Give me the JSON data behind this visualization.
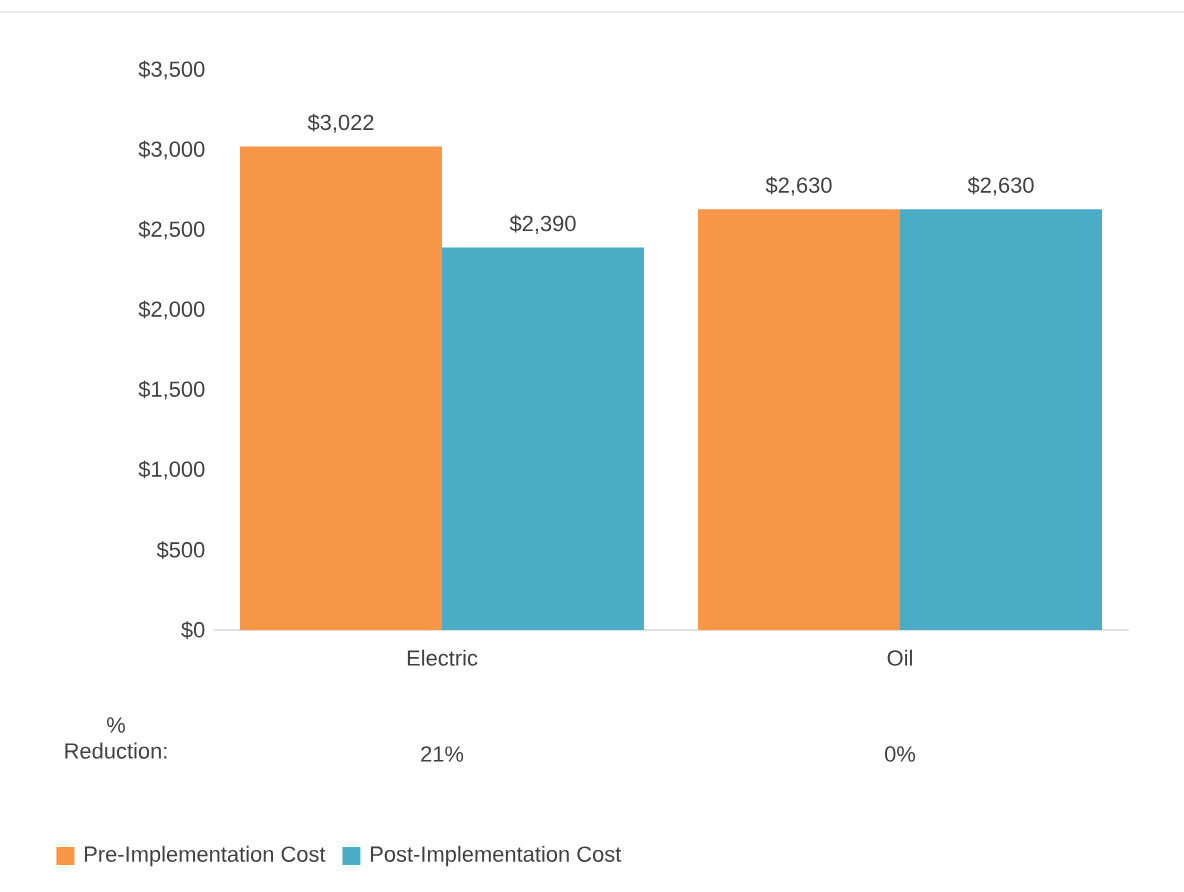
{
  "chart_data": {
    "type": "bar",
    "categories": [
      "Electric",
      "Oil"
    ],
    "series": [
      {
        "name": "Pre-Implementation Cost",
        "color": "#f79646",
        "values": [
          3022,
          2630
        ],
        "value_labels": [
          "$3,022",
          "$2,630"
        ]
      },
      {
        "name": "Post-Implementation Cost",
        "color": "#4bacc6",
        "values": [
          2390,
          2630
        ],
        "value_labels": [
          "$2,390",
          "$2,630"
        ]
      }
    ],
    "ylim": [
      0,
      3500
    ],
    "yticks": [
      {
        "value": 0,
        "label": "$0"
      },
      {
        "value": 500,
        "label": "$500"
      },
      {
        "value": 1000,
        "label": "$1,000"
      },
      {
        "value": 1500,
        "label": "$1,500"
      },
      {
        "value": 2000,
        "label": "$2,000"
      },
      {
        "value": 2500,
        "label": "$2,500"
      },
      {
        "value": 3000,
        "label": "$3,000"
      },
      {
        "value": 3500,
        "label": "$3,500"
      }
    ],
    "annotations": [
      "% Reduction:",
      "21%",
      "0%"
    ],
    "legend": "bottom",
    "grid": false
  }
}
